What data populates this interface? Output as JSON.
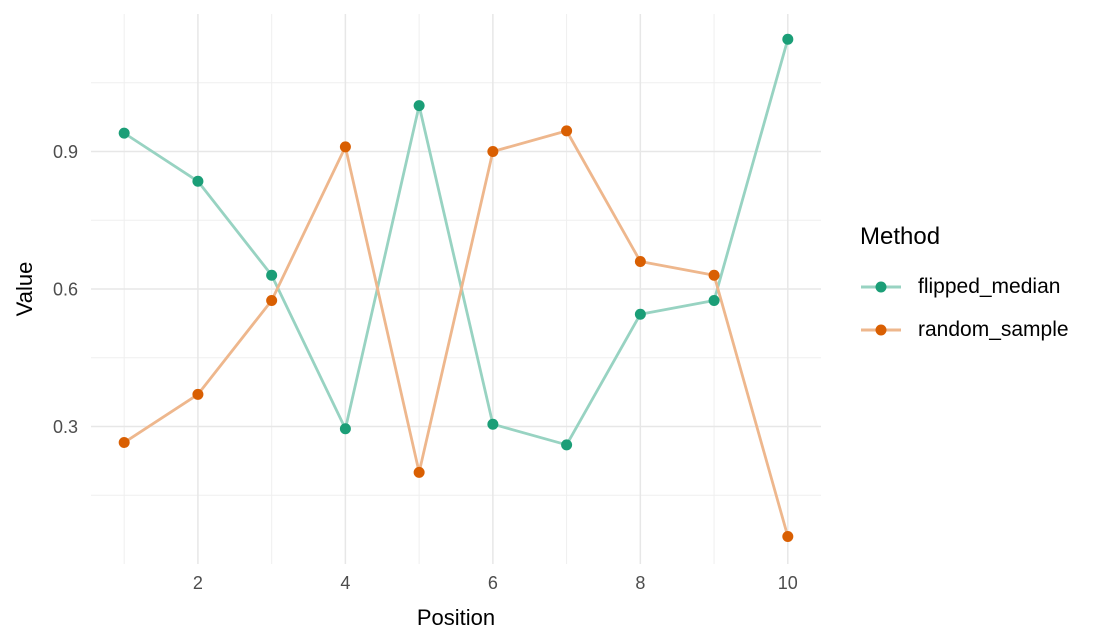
{
  "chart_data": {
    "type": "line",
    "title": "",
    "xlabel": "Position",
    "ylabel": "Value",
    "legend_title": "Method",
    "legend_position": "right",
    "grid": true,
    "x": [
      1,
      2,
      3,
      4,
      5,
      6,
      7,
      8,
      9,
      10
    ],
    "series": [
      {
        "name": "flipped_median",
        "point_color": "#1B9E77",
        "line_color": "#98D3C2",
        "values": [
          0.94,
          0.835,
          0.63,
          0.295,
          1.0,
          0.305,
          0.26,
          0.545,
          0.575,
          1.145
        ]
      },
      {
        "name": "random_sample",
        "point_color": "#D95F02",
        "line_color": "#EEB78D",
        "values": [
          0.265,
          0.37,
          0.575,
          0.91,
          0.2,
          0.9,
          0.945,
          0.66,
          0.63,
          0.06
        ]
      }
    ],
    "x_ticks": [
      2,
      4,
      6,
      8,
      10
    ],
    "x_minor_ticks": [
      1,
      3,
      5,
      7,
      9
    ],
    "y_ticks": [
      0.3,
      0.6,
      0.9
    ],
    "y_minor_ticks": [
      0.15,
      0.45,
      0.75,
      1.05
    ],
    "xlim": [
      0.55,
      10.45
    ],
    "ylim": [
      0,
      1.2
    ]
  },
  "colors": {
    "background": "#FFFFFF",
    "grid_major": "#E7E7E7",
    "grid_minor": "#EFEFEF",
    "tick_label": "#4D4D4D",
    "axis_title": "#000000"
  }
}
